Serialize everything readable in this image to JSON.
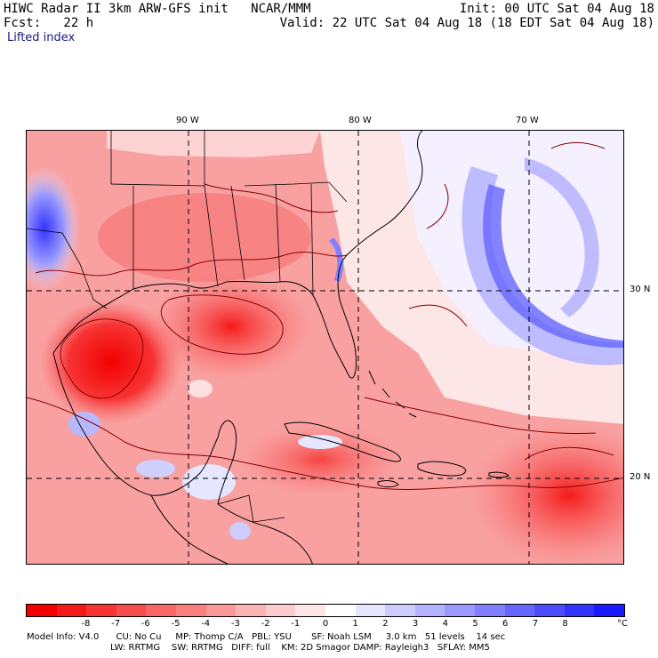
{
  "header": {
    "title": "HIWC Radar II 3km ARW-GFS init   NCAR/MMM",
    "init": "Init: 00 UTC Sat 04 Aug 18",
    "fcst": "Fcst:   22 h",
    "valid": "Valid: 22 UTC Sat 04 Aug 18 (18 EDT Sat 04 Aug 18)",
    "field": "Lifted index"
  },
  "map": {
    "lon_labels": [
      "90 W",
      "80 W",
      "70 W"
    ],
    "lat_labels": [
      "30 N",
      "20 N"
    ],
    "field_name": "Lifted index",
    "value_note": "negative (red) over land, Gulf of Mexico and Caribbean; positive (blue) offshore Atlantic and NW corner"
  },
  "colorbar": {
    "labels": [
      "-8",
      "-7",
      "-6",
      "-5",
      "-4",
      "-3",
      "-2",
      "-1",
      "0",
      "1",
      "2",
      "3",
      "4",
      "5",
      "6",
      "7",
      "8"
    ],
    "unit": "°C",
    "colors": [
      "#f20000",
      "#f51a1a",
      "#f73333",
      "#f84d4d",
      "#f96666",
      "#fa8080",
      "#fb9999",
      "#fcb3b3",
      "#fdcccc",
      "#fee6e6",
      "#ffffff",
      "#e6e6ff",
      "#ccccff",
      "#b3b3ff",
      "#9999ff",
      "#8080ff",
      "#6666ff",
      "#4d4dff",
      "#3333ff",
      "#1a1aff"
    ]
  },
  "model_info": {
    "line1": "Model Info: V4.0      CU: No Cu     MP: Thomp C/A   PBL: YSU       SF: Noah LSM     3.0 km   51 levels    14 sec",
    "line2": "LW: RRTMG    SW: RRTMG   DIFF: full    KM: 2D Smagor DAMP: Rayleigh3   SFLAY: MM5"
  }
}
